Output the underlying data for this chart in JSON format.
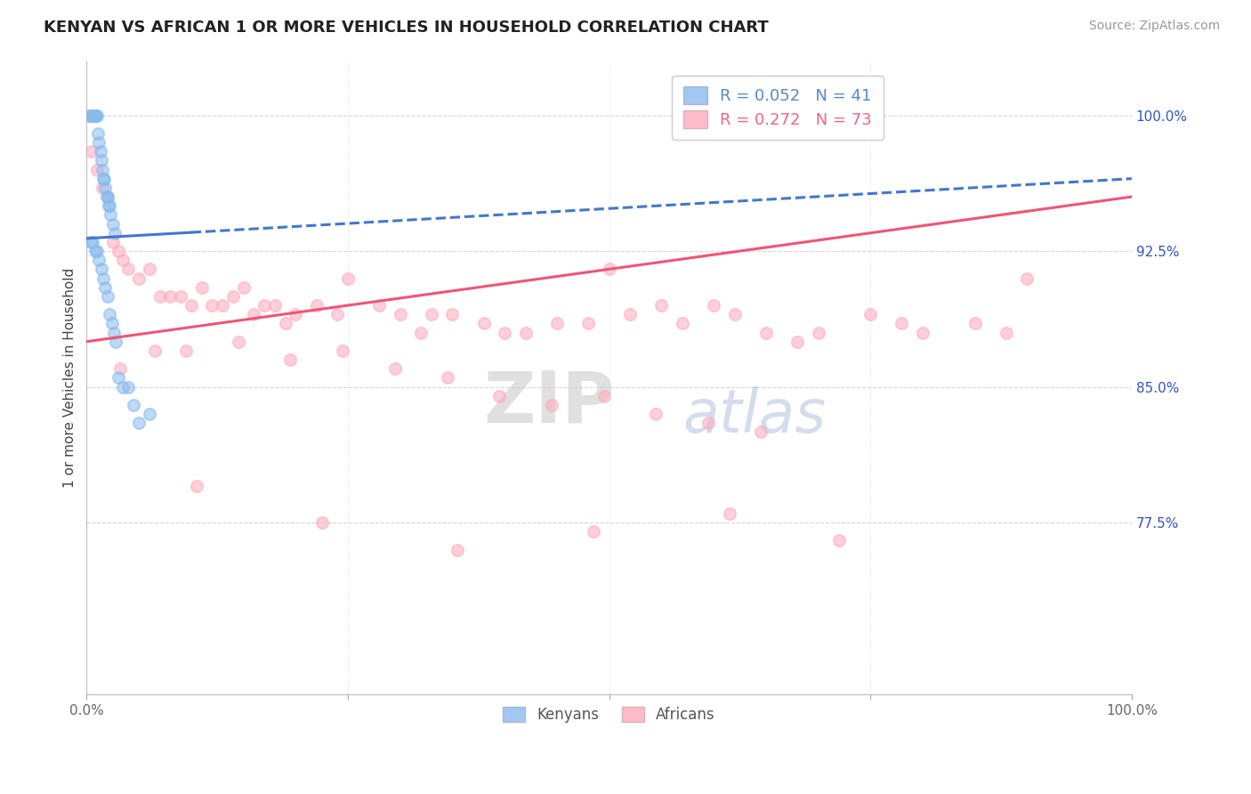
{
  "title": "KENYAN VS AFRICAN 1 OR MORE VEHICLES IN HOUSEHOLD CORRELATION CHART",
  "source": "Source: ZipAtlas.com",
  "ylabel": "1 or more Vehicles in Household",
  "xlim": [
    0.0,
    100.0
  ],
  "ylim": [
    68.0,
    103.0
  ],
  "yticks": [
    77.5,
    85.0,
    92.5,
    100.0
  ],
  "yticklabels": [
    "77.5%",
    "85.0%",
    "92.5%",
    "100.0%"
  ],
  "xtick_positions": [
    0,
    25,
    50,
    75,
    100
  ],
  "xticklabels": [
    "0.0%",
    "",
    "",
    "",
    "100.0%"
  ],
  "legend_entries": [
    {
      "label": "R = 0.052   N = 41",
      "color": "#5588CC"
    },
    {
      "label": "R = 0.272   N = 73",
      "color": "#EE6688"
    }
  ],
  "legend_label_kenyans": "Kenyans",
  "legend_label_africans": "Africans",
  "background_color": "#FFFFFF",
  "kenyan_color": "#88BBEE",
  "african_color": "#FFAABC",
  "kenyan_line_color": "#4477CC",
  "african_line_color": "#EE5577",
  "dot_size": 90,
  "dot_alpha": 0.55,
  "line_width": 2.2,
  "kenyan_x": [
    0.3,
    0.5,
    0.6,
    0.7,
    0.8,
    0.9,
    1.0,
    1.1,
    1.2,
    1.3,
    1.4,
    1.5,
    1.6,
    1.7,
    1.8,
    1.9,
    2.0,
    2.1,
    2.2,
    2.3,
    2.5,
    2.7,
    0.4,
    0.6,
    0.8,
    1.0,
    1.2,
    1.4,
    1.6,
    1.8,
    2.0,
    2.2,
    2.4,
    2.6,
    2.8,
    3.0,
    3.5,
    4.0,
    4.5,
    5.0,
    6.0
  ],
  "kenyan_y": [
    100.0,
    100.0,
    100.0,
    100.0,
    100.0,
    100.0,
    100.0,
    99.0,
    98.5,
    98.0,
    97.5,
    97.0,
    96.5,
    96.5,
    96.0,
    95.5,
    95.5,
    95.0,
    95.0,
    94.5,
    94.0,
    93.5,
    93.0,
    93.0,
    92.5,
    92.5,
    92.0,
    91.5,
    91.0,
    90.5,
    90.0,
    89.0,
    88.5,
    88.0,
    87.5,
    85.5,
    85.0,
    85.0,
    84.0,
    83.0,
    83.5
  ],
  "african_x": [
    0.3,
    0.5,
    1.0,
    1.5,
    2.0,
    2.5,
    3.0,
    3.5,
    4.0,
    5.0,
    6.0,
    7.0,
    8.0,
    9.0,
    10.0,
    11.0,
    12.0,
    13.0,
    14.0,
    15.0,
    16.0,
    17.0,
    18.0,
    19.0,
    20.0,
    22.0,
    24.0,
    25.0,
    28.0,
    30.0,
    32.0,
    33.0,
    35.0,
    38.0,
    40.0,
    42.0,
    45.0,
    48.0,
    50.0,
    52.0,
    55.0,
    57.0,
    60.0,
    62.0,
    65.0,
    68.0,
    70.0,
    75.0,
    78.0,
    80.0,
    85.0,
    88.0,
    90.0,
    3.2,
    6.5,
    9.5,
    14.5,
    19.5,
    24.5,
    29.5,
    34.5,
    39.5,
    44.5,
    49.5,
    54.5,
    59.5,
    64.5,
    10.5,
    22.5,
    35.5,
    48.5,
    61.5,
    72.0
  ],
  "african_y": [
    100.0,
    98.0,
    97.0,
    96.0,
    95.5,
    93.0,
    92.5,
    92.0,
    91.5,
    91.0,
    91.5,
    90.0,
    90.0,
    90.0,
    89.5,
    90.5,
    89.5,
    89.5,
    90.0,
    90.5,
    89.0,
    89.5,
    89.5,
    88.5,
    89.0,
    89.5,
    89.0,
    91.0,
    89.5,
    89.0,
    88.0,
    89.0,
    89.0,
    88.5,
    88.0,
    88.0,
    88.5,
    88.5,
    91.5,
    89.0,
    89.5,
    88.5,
    89.5,
    89.0,
    88.0,
    87.5,
    88.0,
    89.0,
    88.5,
    88.0,
    88.5,
    88.0,
    91.0,
    86.0,
    87.0,
    87.0,
    87.5,
    86.5,
    87.0,
    86.0,
    85.5,
    84.5,
    84.0,
    84.5,
    83.5,
    83.0,
    82.5,
    79.5,
    77.5,
    76.0,
    77.0,
    78.0,
    76.5
  ]
}
